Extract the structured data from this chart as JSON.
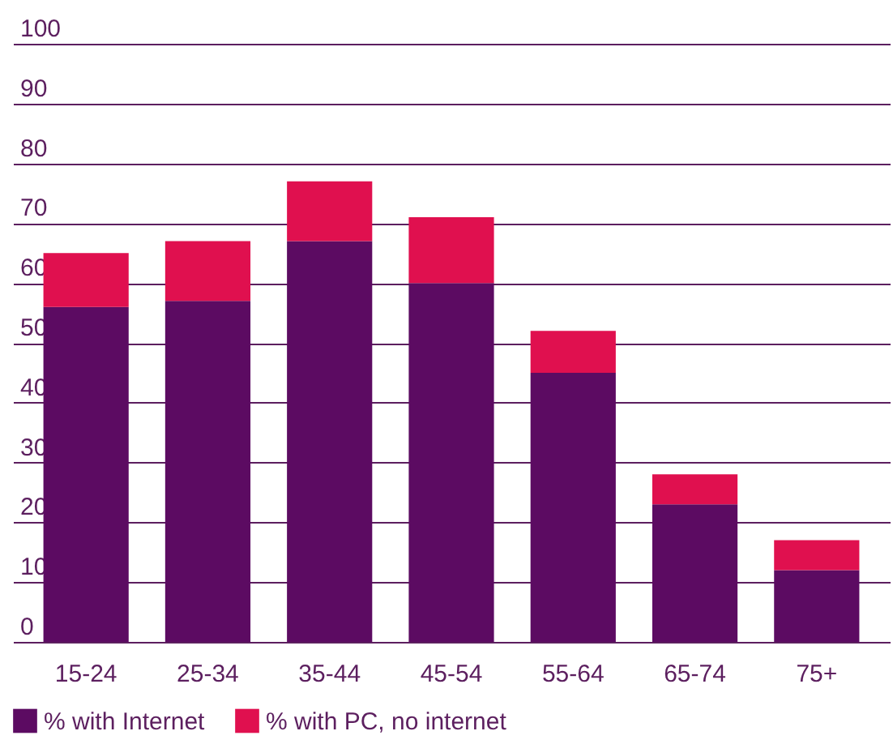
{
  "chart_data": {
    "type": "bar",
    "stacked": true,
    "categories": [
      "15-24",
      "25-34",
      "35-44",
      "45-54",
      "55-64",
      "65-74",
      "75+"
    ],
    "series": [
      {
        "name": "% with Internet",
        "color": "#5c0b62",
        "values": [
          56,
          57,
          67,
          60,
          45,
          23,
          12
        ]
      },
      {
        "name": "% with PC, no internet",
        "color": "#e0104f",
        "values": [
          9,
          10,
          10,
          11,
          7,
          5,
          5
        ]
      }
    ],
    "ylim": [
      0,
      100
    ],
    "yticks": [
      0,
      10,
      20,
      30,
      40,
      50,
      60,
      70,
      80,
      90,
      100
    ],
    "grid": "y",
    "legend": "bottom left"
  }
}
